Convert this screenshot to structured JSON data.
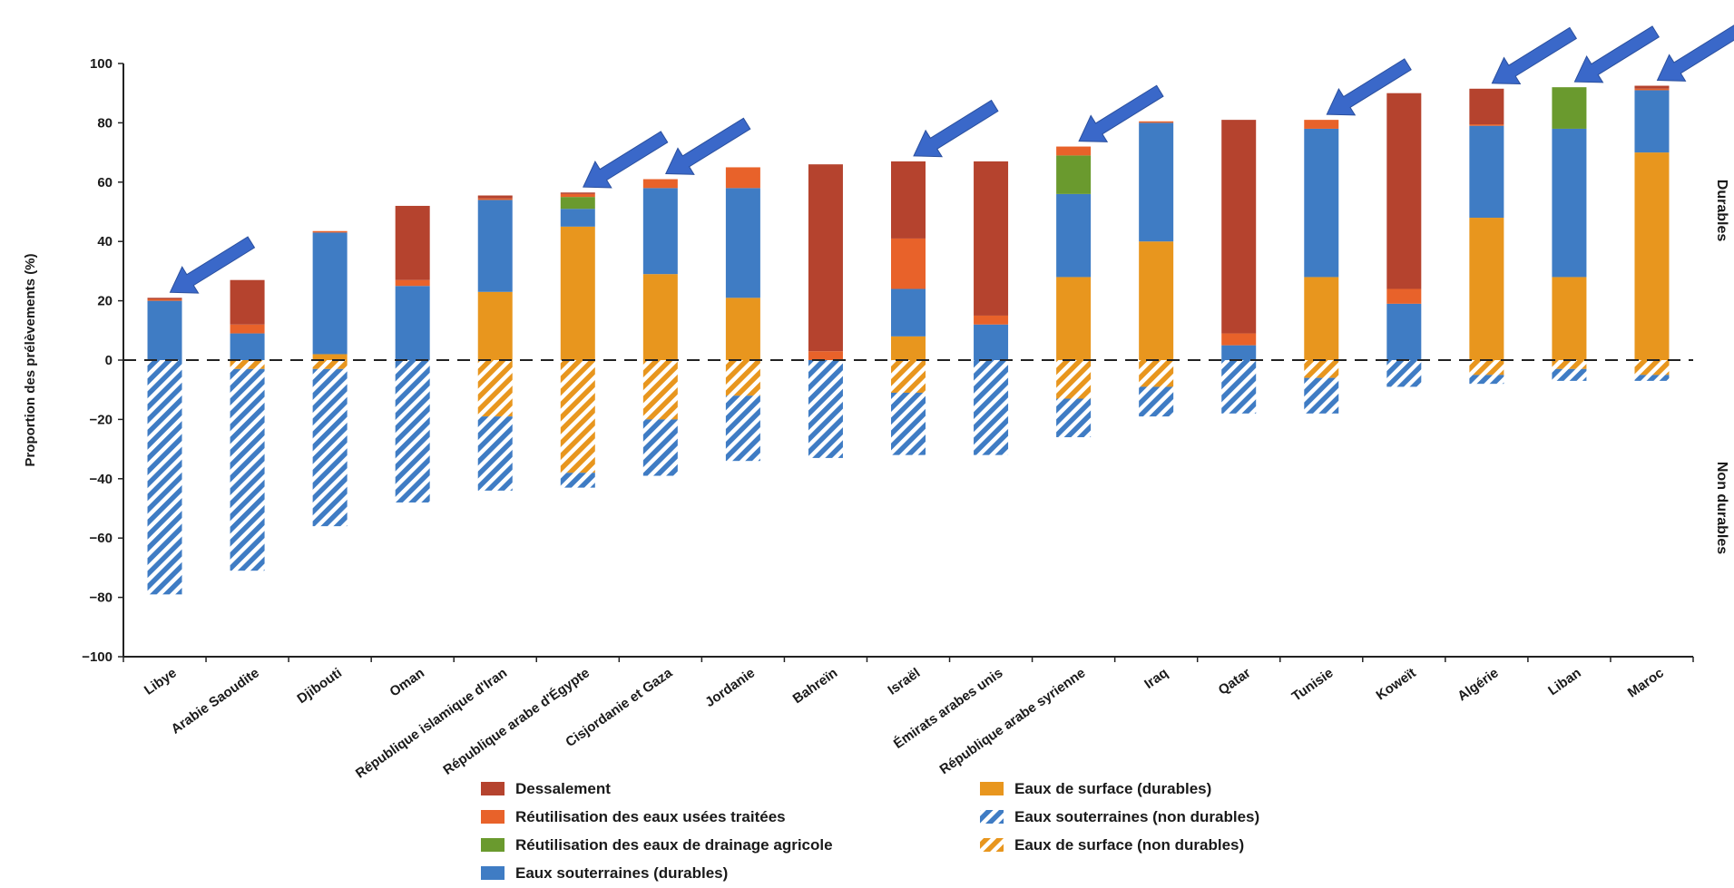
{
  "chart_data": {
    "type": "bar",
    "stacked": true,
    "ylabel": "Proportion des prélèvements (%)",
    "ylim": [
      -100,
      100
    ],
    "yticks": [
      "100",
      "80",
      "60",
      "40",
      "20",
      "0",
      "−20",
      "−40",
      "−60",
      "−80",
      "−100"
    ],
    "right_labels": {
      "top": "Durables",
      "bottom": "Non durables"
    },
    "categories": [
      "Libye",
      "Arabie Saoudite",
      "Djibouti",
      "Oman",
      "République islamique d'Iran",
      "République arabe d'Égypte",
      "Cisjordanie et Gaza",
      "Jordanie",
      "Bahreïn",
      "Israël",
      "Émirats arabes unis",
      "République arabe syrienne",
      "Iraq",
      "Qatar",
      "Tunisie",
      "Koweït",
      "Algérie",
      "Liban",
      "Maroc"
    ],
    "highlighted": [
      "Libye",
      "République arabe d'Égypte",
      "Cisjordanie et Gaza",
      "Israël",
      "République arabe syrienne",
      "Tunisie",
      "Algérie",
      "Liban",
      "Maroc"
    ],
    "series": [
      {
        "name": "Eaux de surface (durables)",
        "color": "#e8961e",
        "pattern": "solid",
        "values": [
          0,
          0,
          2,
          0,
          23,
          45,
          29,
          21,
          0,
          8,
          0,
          28,
          40,
          0,
          28,
          0,
          48,
          28,
          70
        ]
      },
      {
        "name": "Eaux souterraines (durables)",
        "color": "#3f7cc4",
        "pattern": "solid",
        "values": [
          20,
          9,
          41,
          25,
          31,
          6,
          29,
          37,
          0,
          16,
          12,
          28,
          40,
          5,
          50,
          19,
          31,
          50,
          21
        ]
      },
      {
        "name": "Réutilisation des eaux de drainage agricole",
        "color": "#6a9a2e",
        "pattern": "solid",
        "values": [
          0,
          0,
          0,
          0,
          0,
          4,
          0,
          0,
          0,
          0,
          0,
          13,
          0,
          0,
          0,
          0,
          0,
          14,
          0
        ]
      },
      {
        "name": "Réutilisation des eaux usées traitées",
        "color": "#e8622a",
        "pattern": "solid",
        "values": [
          0.5,
          3,
          0.5,
          2,
          0.5,
          1,
          3,
          7,
          3,
          17,
          3,
          3,
          0.5,
          4,
          3,
          5,
          0.5,
          0,
          0.5
        ]
      },
      {
        "name": "Dessalement",
        "color": "#b5432e",
        "pattern": "solid",
        "values": [
          0.5,
          15,
          0,
          25,
          1,
          0.5,
          0,
          0,
          63,
          26,
          52,
          0,
          0,
          72,
          0,
          66,
          12,
          0,
          1
        ]
      },
      {
        "name": "Eaux de surface (non durables)",
        "color": "#e8961e",
        "pattern": "hatched",
        "values": [
          0,
          -3,
          -3,
          0,
          -19,
          -38,
          -20,
          -12,
          0,
          -11,
          0,
          -13,
          -9,
          0,
          -6,
          0,
          -5,
          -3,
          -5
        ]
      },
      {
        "name": "Eaux souterraines (non durables)",
        "color": "#3f7cc4",
        "pattern": "hatched",
        "values": [
          -79,
          -68,
          -53,
          -48,
          -25,
          -5,
          -19,
          -22,
          -33,
          -21,
          -32,
          -13,
          -10,
          -18,
          -12,
          -9,
          -3,
          -4,
          -2
        ]
      }
    ],
    "legend": {
      "placement": "bottom",
      "items": [
        {
          "label": "Dessalement",
          "color": "#b5432e",
          "pattern": "solid"
        },
        {
          "label": "Réutilisation des eaux usées traitées",
          "color": "#e8622a",
          "pattern": "solid"
        },
        {
          "label": "Réutilisation des eaux de drainage agricole",
          "color": "#6a9a2e",
          "pattern": "solid"
        },
        {
          "label": "Eaux souterraines (durables)",
          "color": "#3f7cc4",
          "pattern": "solid"
        },
        {
          "label": "Eaux de surface (durables)",
          "color": "#e8961e",
          "pattern": "solid"
        },
        {
          "label": "Eaux souterraines (non durables)",
          "color": "#3f7cc4",
          "pattern": "hatched"
        },
        {
          "label": "Eaux de surface (non durables)",
          "color": "#e8961e",
          "pattern": "hatched"
        }
      ]
    },
    "annotation_color": "#3a68c9"
  }
}
